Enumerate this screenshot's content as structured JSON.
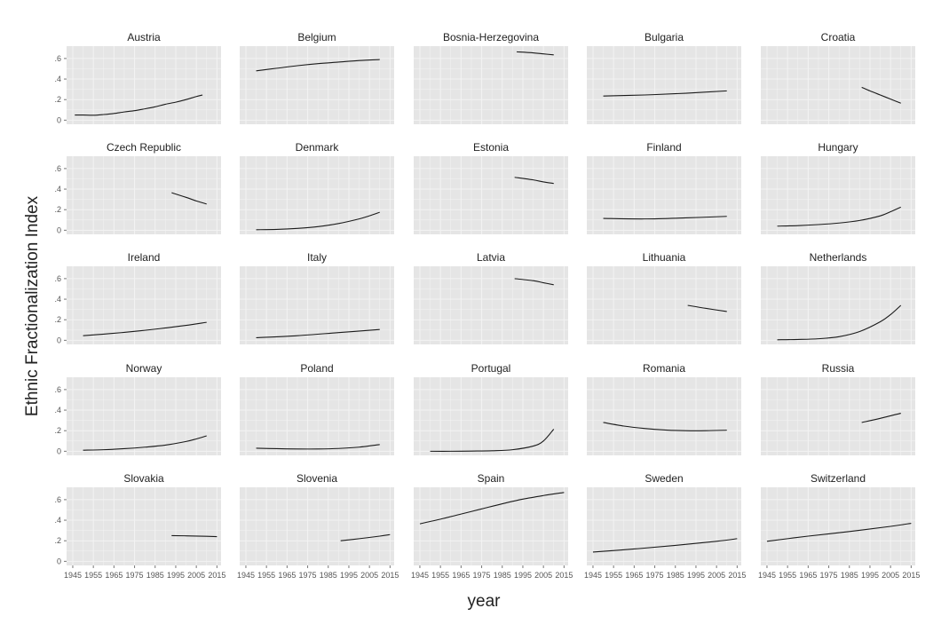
{
  "chart_data": {
    "type": "line",
    "facet_layout": "5x5 small multiples",
    "xlabel": "year",
    "ylabel": "Ethnic Fractionalization Index",
    "xlim": [
      1942,
      2017
    ],
    "ylim": [
      -0.04,
      0.72
    ],
    "x_ticks": [
      1945,
      1955,
      1965,
      1975,
      1985,
      1995,
      2005,
      2015
    ],
    "x_tick_labels": [
      "1945",
      "1955",
      "1965",
      "1975",
      "1985",
      "1995",
      "2005",
      "2015"
    ],
    "y_ticks": [
      0,
      0.2,
      0.4,
      0.6
    ],
    "y_tick_labels": [
      "0",
      ".2",
      ".4",
      ".6"
    ],
    "grid": true,
    "colors": {
      "panel_bg": "#e5e5e5",
      "grid": "#f3f3f3",
      "line": "#1a1a1a",
      "text": "#222222",
      "tick_text": "#555555"
    },
    "series": [
      {
        "name": "Austria",
        "x": [
          1946,
          1950,
          1955,
          1960,
          1965,
          1970,
          1975,
          1980,
          1985,
          1990,
          1995,
          2000,
          2005,
          2008
        ],
        "y": [
          0.05,
          0.05,
          0.048,
          0.055,
          0.065,
          0.08,
          0.092,
          0.11,
          0.13,
          0.155,
          0.175,
          0.2,
          0.23,
          0.245
        ]
      },
      {
        "name": "Belgium",
        "x": [
          1950,
          1960,
          1970,
          1980,
          1990,
          2000,
          2010
        ],
        "y": [
          0.48,
          0.505,
          0.53,
          0.55,
          0.565,
          0.58,
          0.59
        ]
      },
      {
        "name": "Bosnia-Herzegovina",
        "x": [
          1992,
          2000,
          2005,
          2010
        ],
        "y": [
          0.665,
          0.655,
          0.645,
          0.635
        ]
      },
      {
        "name": "Bulgaria",
        "x": [
          1950,
          1970,
          1990,
          2010
        ],
        "y": [
          0.235,
          0.245,
          0.262,
          0.285
        ]
      },
      {
        "name": "Croatia",
        "x": [
          1991,
          1995,
          2000,
          2005,
          2010
        ],
        "y": [
          0.32,
          0.285,
          0.245,
          0.205,
          0.165
        ]
      },
      {
        "name": "Czech Republic",
        "x": [
          1993,
          2000,
          2005,
          2010
        ],
        "y": [
          0.365,
          0.32,
          0.285,
          0.255
        ]
      },
      {
        "name": "Denmark",
        "x": [
          1950,
          1960,
          1970,
          1980,
          1990,
          2000,
          2005,
          2010
        ],
        "y": [
          0.005,
          0.008,
          0.018,
          0.035,
          0.065,
          0.11,
          0.14,
          0.175
        ]
      },
      {
        "name": "Estonia",
        "x": [
          1991,
          2000,
          2005,
          2010
        ],
        "y": [
          0.515,
          0.49,
          0.47,
          0.455
        ]
      },
      {
        "name": "Finland",
        "x": [
          1950,
          1970,
          1990,
          2010
        ],
        "y": [
          0.115,
          0.11,
          0.12,
          0.135
        ]
      },
      {
        "name": "Hungary",
        "x": [
          1950,
          1960,
          1970,
          1980,
          1990,
          2000,
          2005,
          2010
        ],
        "y": [
          0.04,
          0.045,
          0.055,
          0.07,
          0.095,
          0.14,
          0.18,
          0.225
        ]
      },
      {
        "name": "Ireland",
        "x": [
          1950,
          1960,
          1970,
          1980,
          1990,
          2000,
          2010
        ],
        "y": [
          0.045,
          0.06,
          0.077,
          0.097,
          0.12,
          0.145,
          0.175
        ]
      },
      {
        "name": "Italy",
        "x": [
          1950,
          1970,
          1990,
          2010
        ],
        "y": [
          0.025,
          0.045,
          0.075,
          0.105
        ]
      },
      {
        "name": "Latvia",
        "x": [
          1991,
          2000,
          2005,
          2010
        ],
        "y": [
          0.6,
          0.58,
          0.56,
          0.54
        ]
      },
      {
        "name": "Lithuania",
        "x": [
          1991,
          2000,
          2010
        ],
        "y": [
          0.34,
          0.31,
          0.28
        ]
      },
      {
        "name": "Netherlands",
        "x": [
          1950,
          1960,
          1970,
          1980,
          1990,
          2000,
          2005,
          2010
        ],
        "y": [
          0.005,
          0.008,
          0.015,
          0.035,
          0.085,
          0.18,
          0.25,
          0.34
        ]
      },
      {
        "name": "Norway",
        "x": [
          1950,
          1960,
          1970,
          1980,
          1990,
          2000,
          2005,
          2010
        ],
        "y": [
          0.01,
          0.015,
          0.025,
          0.04,
          0.06,
          0.095,
          0.12,
          0.15
        ]
      },
      {
        "name": "Poland",
        "x": [
          1950,
          1960,
          1970,
          1980,
          1990,
          2000,
          2010
        ],
        "y": [
          0.03,
          0.025,
          0.022,
          0.022,
          0.027,
          0.04,
          0.065
        ]
      },
      {
        "name": "Portugal",
        "x": [
          1950,
          1960,
          1970,
          1980,
          1990,
          2000,
          2005,
          2010
        ],
        "y": [
          0.0,
          0.0,
          0.002,
          0.005,
          0.015,
          0.05,
          0.1,
          0.215
        ]
      },
      {
        "name": "Romania",
        "x": [
          1950,
          1960,
          1970,
          1980,
          1990,
          2000,
          2010
        ],
        "y": [
          0.28,
          0.245,
          0.222,
          0.207,
          0.2,
          0.2,
          0.205
        ]
      },
      {
        "name": "Russia",
        "x": [
          1991,
          2000,
          2010
        ],
        "y": [
          0.28,
          0.32,
          0.37
        ]
      },
      {
        "name": "Slovakia",
        "x": [
          1993,
          2000,
          2010,
          2015
        ],
        "y": [
          0.25,
          0.248,
          0.243,
          0.24
        ]
      },
      {
        "name": "Slovenia",
        "x": [
          1991,
          2000,
          2010,
          2015
        ],
        "y": [
          0.2,
          0.22,
          0.245,
          0.26
        ]
      },
      {
        "name": "Spain",
        "x": [
          1945,
          1955,
          1965,
          1975,
          1985,
          1995,
          2005,
          2015
        ],
        "y": [
          0.365,
          0.41,
          0.46,
          0.51,
          0.56,
          0.605,
          0.64,
          0.67
        ]
      },
      {
        "name": "Sweden",
        "x": [
          1945,
          1965,
          1985,
          2005,
          2015
        ],
        "y": [
          0.09,
          0.12,
          0.155,
          0.195,
          0.22
        ]
      },
      {
        "name": "Switzerland",
        "x": [
          1945,
          1965,
          1985,
          2005,
          2015
        ],
        "y": [
          0.195,
          0.245,
          0.29,
          0.34,
          0.37
        ]
      }
    ]
  }
}
